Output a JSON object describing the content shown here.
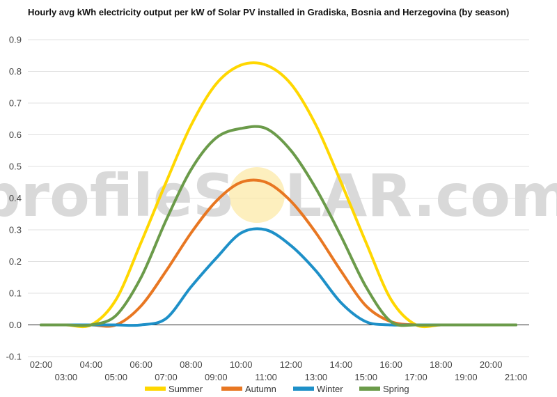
{
  "chart_data": {
    "type": "line",
    "title": "Hourly avg kWh electricity output per kW of Solar PV installed in Gradiska, Bosnia and Herzegovina (by season)",
    "xlabel": "",
    "ylabel": "",
    "watermark": {
      "left": "profileS",
      "middle": "O",
      "right": "LAR.com"
    },
    "x": [
      "02:00",
      "03:00",
      "04:00",
      "05:00",
      "06:00",
      "07:00",
      "08:00",
      "09:00",
      "10:00",
      "11:00",
      "12:00",
      "13:00",
      "14:00",
      "15:00",
      "16:00",
      "17:00",
      "18:00",
      "19:00",
      "20:00",
      "21:00"
    ],
    "x_tick_labels_top": [
      "02:00",
      "04:00",
      "06:00",
      "08:00",
      "10:00",
      "12:00",
      "14:00",
      "16:00",
      "18:00",
      "20:00"
    ],
    "x_tick_labels_bottom": [
      "03:00",
      "05:00",
      "07:00",
      "09:00",
      "11:00",
      "13:00",
      "15:00",
      "17:00",
      "19:00",
      "21:00"
    ],
    "ylim": [
      -0.1,
      0.9
    ],
    "y_ticks": [
      "-0.1",
      "0.0",
      "0.1",
      "0.2",
      "0.3",
      "0.4",
      "0.5",
      "0.6",
      "0.7",
      "0.8",
      "0.9"
    ],
    "grid": true,
    "legend_position": "bottom",
    "series": [
      {
        "name": "Summer",
        "color": "#ffd700",
        "values": [
          0,
          0,
          0,
          0.08,
          0.26,
          0.45,
          0.63,
          0.76,
          0.82,
          0.82,
          0.76,
          0.63,
          0.45,
          0.26,
          0.08,
          0,
          0,
          0,
          0,
          0
        ]
      },
      {
        "name": "Autumn",
        "color": "#e87722",
        "values": [
          0,
          0,
          0,
          0,
          0.06,
          0.17,
          0.29,
          0.39,
          0.45,
          0.45,
          0.39,
          0.29,
          0.17,
          0.06,
          0.01,
          0,
          0,
          0,
          0,
          0
        ]
      },
      {
        "name": "Winter",
        "color": "#1e90c8",
        "values": [
          0,
          0,
          0,
          0,
          0,
          0.02,
          0.12,
          0.21,
          0.29,
          0.3,
          0.25,
          0.17,
          0.07,
          0.01,
          0,
          0,
          0,
          0,
          0,
          0
        ]
      },
      {
        "name": "Spring",
        "color": "#6b9b4a",
        "values": [
          0,
          0,
          0,
          0.03,
          0.15,
          0.33,
          0.49,
          0.59,
          0.62,
          0.62,
          0.55,
          0.43,
          0.28,
          0.12,
          0.01,
          0,
          0,
          0,
          0,
          0
        ]
      }
    ]
  }
}
